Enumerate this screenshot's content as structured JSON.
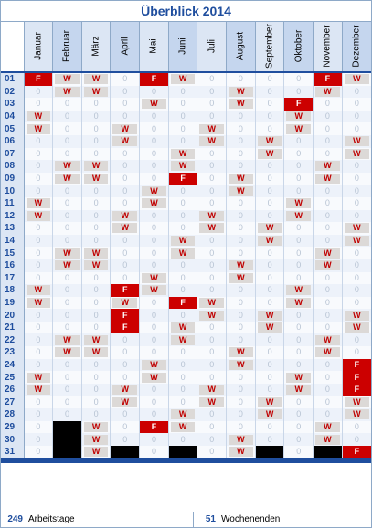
{
  "title": "Überblick 2014",
  "months": [
    "Januar",
    "Februar",
    "März",
    "April",
    "Mai",
    "Juni",
    "Juli",
    "August",
    "September",
    "Oktober",
    "November",
    "Dezember"
  ],
  "days": [
    "01",
    "02",
    "03",
    "04",
    "05",
    "06",
    "07",
    "08",
    "09",
    "10",
    "11",
    "12",
    "13",
    "14",
    "15",
    "16",
    "17",
    "18",
    "19",
    "20",
    "21",
    "22",
    "23",
    "24",
    "25",
    "26",
    "27",
    "28",
    "29",
    "30",
    "31"
  ],
  "rows": [
    [
      "F",
      "W",
      "W",
      "0",
      "F",
      "W",
      "0",
      "0",
      "0",
      "0",
      "F",
      "W"
    ],
    [
      "0",
      "W",
      "W",
      "0",
      "0",
      "0",
      "0",
      "W",
      "0",
      "0",
      "W",
      "0"
    ],
    [
      "0",
      "0",
      "0",
      "0",
      "W",
      "0",
      "0",
      "W",
      "0",
      "F",
      "0",
      "0"
    ],
    [
      "W",
      "0",
      "0",
      "0",
      "0",
      "0",
      "0",
      "0",
      "0",
      "W",
      "0",
      "0"
    ],
    [
      "W",
      "0",
      "0",
      "W",
      "0",
      "0",
      "W",
      "0",
      "0",
      "W",
      "0",
      "0"
    ],
    [
      "0",
      "0",
      "0",
      "W",
      "0",
      "0",
      "W",
      "0",
      "W",
      "0",
      "0",
      "W"
    ],
    [
      "0",
      "0",
      "0",
      "0",
      "0",
      "W",
      "0",
      "0",
      "W",
      "0",
      "0",
      "W"
    ],
    [
      "0",
      "W",
      "W",
      "0",
      "0",
      "W",
      "0",
      "0",
      "0",
      "0",
      "W",
      "0"
    ],
    [
      "0",
      "W",
      "W",
      "0",
      "0",
      "F",
      "0",
      "W",
      "0",
      "0",
      "W",
      "0"
    ],
    [
      "0",
      "0",
      "0",
      "0",
      "W",
      "0",
      "0",
      "W",
      "0",
      "0",
      "0",
      "0"
    ],
    [
      "W",
      "0",
      "0",
      "0",
      "W",
      "0",
      "0",
      "0",
      "0",
      "W",
      "0",
      "0"
    ],
    [
      "W",
      "0",
      "0",
      "W",
      "0",
      "0",
      "W",
      "0",
      "0",
      "W",
      "0",
      "0"
    ],
    [
      "0",
      "0",
      "0",
      "W",
      "0",
      "0",
      "W",
      "0",
      "W",
      "0",
      "0",
      "W"
    ],
    [
      "0",
      "0",
      "0",
      "0",
      "0",
      "W",
      "0",
      "0",
      "W",
      "0",
      "0",
      "W"
    ],
    [
      "0",
      "W",
      "W",
      "0",
      "0",
      "W",
      "0",
      "0",
      "0",
      "0",
      "W",
      "0"
    ],
    [
      "0",
      "W",
      "W",
      "0",
      "0",
      "0",
      "0",
      "W",
      "0",
      "0",
      "W",
      "0"
    ],
    [
      "0",
      "0",
      "0",
      "0",
      "W",
      "0",
      "0",
      "W",
      "0",
      "0",
      "0",
      "0"
    ],
    [
      "W",
      "0",
      "0",
      "F",
      "W",
      "0",
      "0",
      "0",
      "0",
      "W",
      "0",
      "0"
    ],
    [
      "W",
      "0",
      "0",
      "W",
      "0",
      "F",
      "W",
      "0",
      "0",
      "W",
      "0",
      "0"
    ],
    [
      "0",
      "0",
      "0",
      "F",
      "0",
      "0",
      "W",
      "0",
      "W",
      "0",
      "0",
      "W"
    ],
    [
      "0",
      "0",
      "0",
      "F",
      "0",
      "W",
      "0",
      "0",
      "W",
      "0",
      "0",
      "W"
    ],
    [
      "0",
      "W",
      "W",
      "0",
      "0",
      "W",
      "0",
      "0",
      "0",
      "0",
      "W",
      "0"
    ],
    [
      "0",
      "W",
      "W",
      "0",
      "0",
      "0",
      "0",
      "W",
      "0",
      "0",
      "W",
      "0"
    ],
    [
      "0",
      "0",
      "0",
      "0",
      "W",
      "0",
      "0",
      "W",
      "0",
      "0",
      "0",
      "F"
    ],
    [
      "W",
      "0",
      "0",
      "0",
      "W",
      "0",
      "0",
      "0",
      "0",
      "W",
      "0",
      "F"
    ],
    [
      "W",
      "0",
      "0",
      "W",
      "0",
      "0",
      "W",
      "0",
      "0",
      "W",
      "0",
      "F"
    ],
    [
      "0",
      "0",
      "0",
      "W",
      "0",
      "0",
      "W",
      "0",
      "W",
      "0",
      "0",
      "W"
    ],
    [
      "0",
      "0",
      "0",
      "0",
      "0",
      "W",
      "0",
      "0",
      "W",
      "0",
      "0",
      "W"
    ],
    [
      "0",
      "X",
      "W",
      "0",
      "F",
      "W",
      "0",
      "0",
      "0",
      "0",
      "W",
      "0"
    ],
    [
      "0",
      "X",
      "W",
      "0",
      "0",
      "0",
      "0",
      "W",
      "0",
      "0",
      "W",
      "0"
    ],
    [
      "0",
      "X",
      "W",
      "X",
      "0",
      "X",
      "0",
      "W",
      "X",
      "0",
      "X",
      "F"
    ]
  ],
  "footer": {
    "work_days_value": "249",
    "work_days_label": "Arbeitstage",
    "weekends_value": "51",
    "weekends_label": "Wochenenden"
  },
  "colors": {
    "accent": "#1f4e9e",
    "holiday": "#cc0000",
    "weekend_text": "#c00000"
  }
}
